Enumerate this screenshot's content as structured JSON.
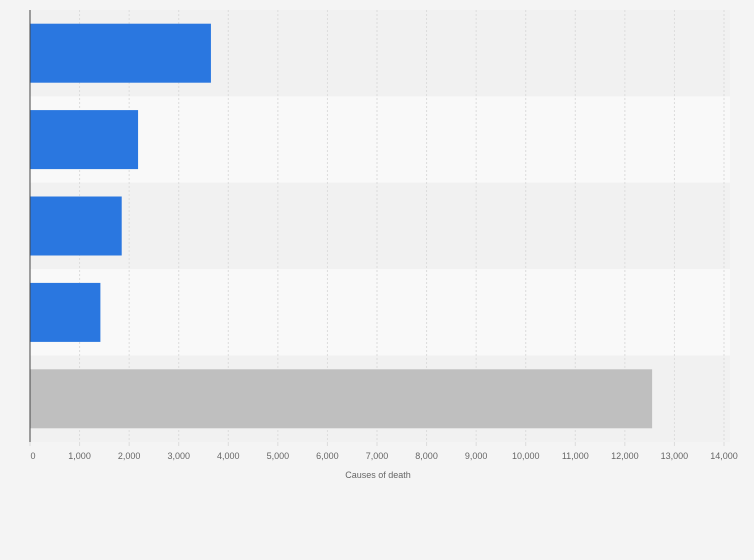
{
  "chart_data": {
    "type": "bar",
    "orientation": "horizontal",
    "title": "",
    "xlabel": "Causes of death",
    "ylabel": "",
    "categories": [
      "",
      "",
      "",
      "",
      ""
    ],
    "values": [
      3650,
      2180,
      1850,
      1420,
      12550
    ],
    "bar_colors": [
      "#2a77e0",
      "#2a77e0",
      "#2a77e0",
      "#2a77e0",
      "#bfbfbf"
    ],
    "xlim": [
      0,
      14000
    ],
    "xticks": [
      0,
      1000,
      2000,
      3000,
      4000,
      5000,
      6000,
      7000,
      8000,
      9000,
      10000,
      11000,
      12000,
      13000,
      14000
    ],
    "xtick_labels": [
      "0",
      "1,000",
      "2,000",
      "3,000",
      "4,000",
      "5,000",
      "6,000",
      "7,000",
      "8,000",
      "9,000",
      "10,000",
      "11,000",
      "12,000",
      "13,000",
      "14,000"
    ],
    "grid": true,
    "legend": "none"
  },
  "colors": {
    "background": "#f4f4f4",
    "band_dark": "#f1f1f1",
    "band_light": "#f9f9f9",
    "gridline": "#dcdcdc",
    "axis": "#444444",
    "primary_bar": "#2a77e0",
    "highlight_bar": "#bfbfbf"
  }
}
